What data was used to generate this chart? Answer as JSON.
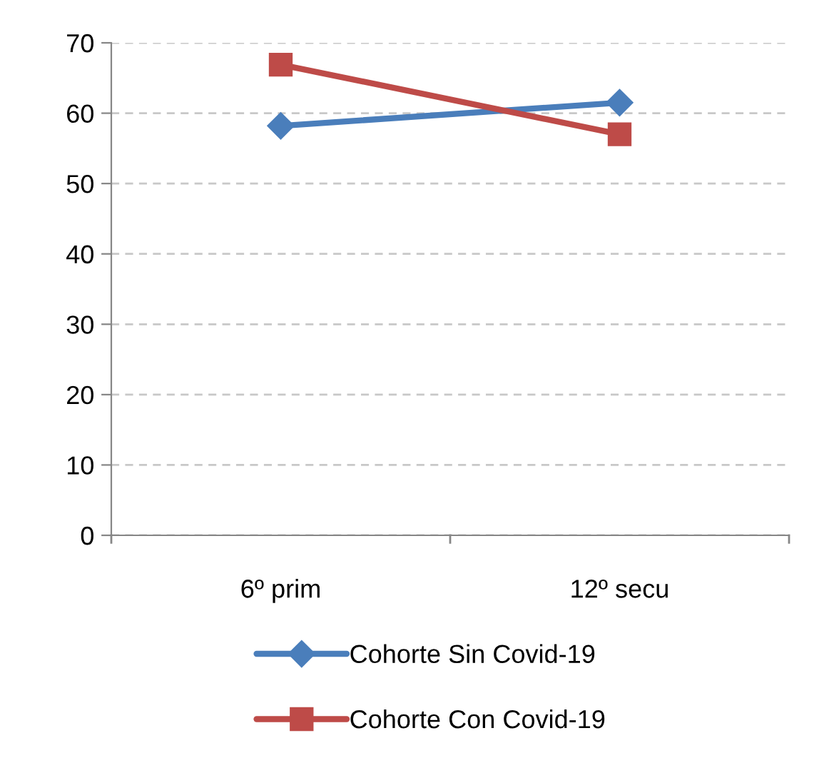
{
  "chart_data": {
    "type": "line",
    "categories": [
      "6º prim",
      "12º secu"
    ],
    "series": [
      {
        "name": "Cohorte Sin Covid-19",
        "color": "#4a7ebb",
        "values": [
          58.2,
          61.5
        ],
        "marker": "diamond"
      },
      {
        "name": "Cohorte Con Covid-19",
        "color": "#be4b48",
        "values": [
          66.9,
          57.0
        ],
        "marker": "square"
      }
    ],
    "ylim": [
      0,
      70
    ],
    "yticks": [
      0,
      10,
      20,
      30,
      40,
      50,
      60,
      70
    ],
    "grid": "y",
    "legend": "bottom",
    "line_style": "solid"
  }
}
